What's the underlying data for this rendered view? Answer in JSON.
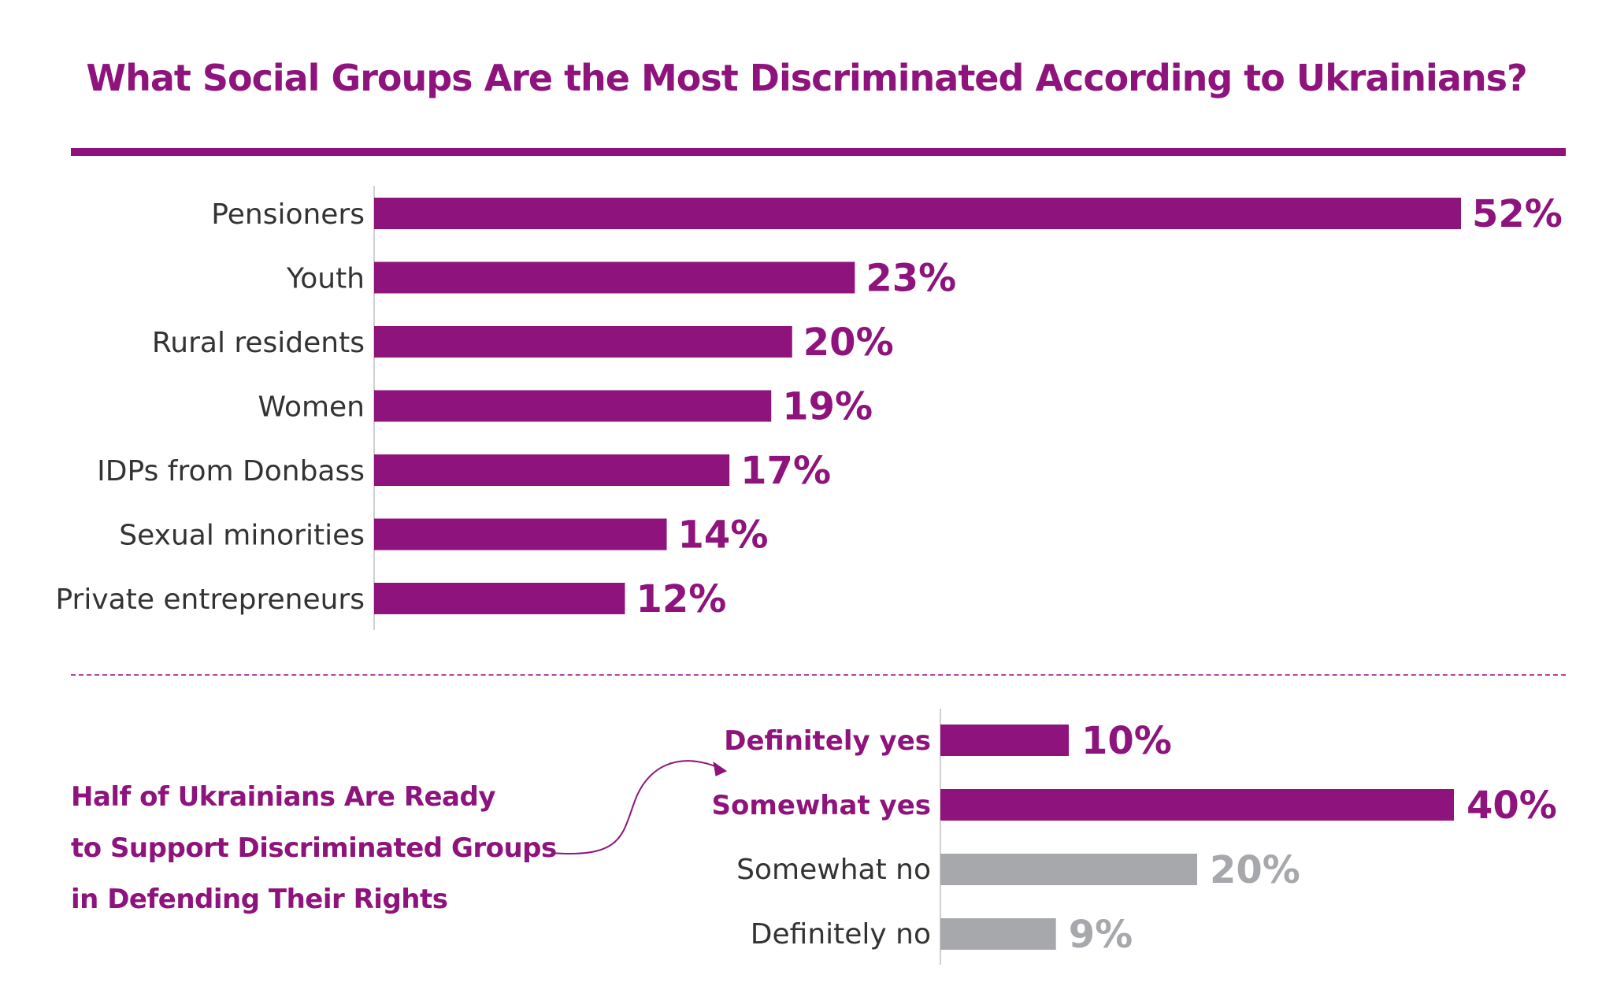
{
  "title": "What Social Groups Are the Most Discriminated According to Ukrainians?",
  "caption_lines": [
    "Half of Ukrainians Are Ready",
    "to Support Discriminated Groups",
    "in Defending Their Rights"
  ],
  "colors": {
    "accent": "#8e137c",
    "muted": "#a7a8ab"
  },
  "chart_data": [
    {
      "type": "bar",
      "orientation": "horizontal",
      "title": "What Social Groups Are the Most Discriminated According to Ukrainians?",
      "categories": [
        "Pensioners",
        "Youth",
        "Rural residents",
        "Women",
        "IDPs from Donbass",
        "Sexual minorities",
        "Private entrepreneurs"
      ],
      "values": [
        52,
        23,
        20,
        19,
        17,
        14,
        12
      ],
      "labels": [
        "52%",
        "23%",
        "20%",
        "19%",
        "17%",
        "14%",
        "12%"
      ],
      "unit": "%",
      "xlim": [
        0,
        52
      ],
      "grid": false,
      "legend": "none"
    },
    {
      "type": "bar",
      "orientation": "horizontal",
      "title": "Half of Ukrainians Are Ready to Support Discriminated Groups in Defending Their Rights",
      "categories": [
        "Definitely yes",
        "Somewhat yes",
        "Somewhat no",
        "Definitely no"
      ],
      "values": [
        10,
        40,
        20,
        9
      ],
      "labels": [
        "10%",
        "40%",
        "20%",
        "9%"
      ],
      "highlight": [
        true,
        true,
        false,
        false
      ],
      "unit": "%",
      "xlim": [
        0,
        40
      ],
      "grid": false,
      "legend": "none"
    }
  ]
}
